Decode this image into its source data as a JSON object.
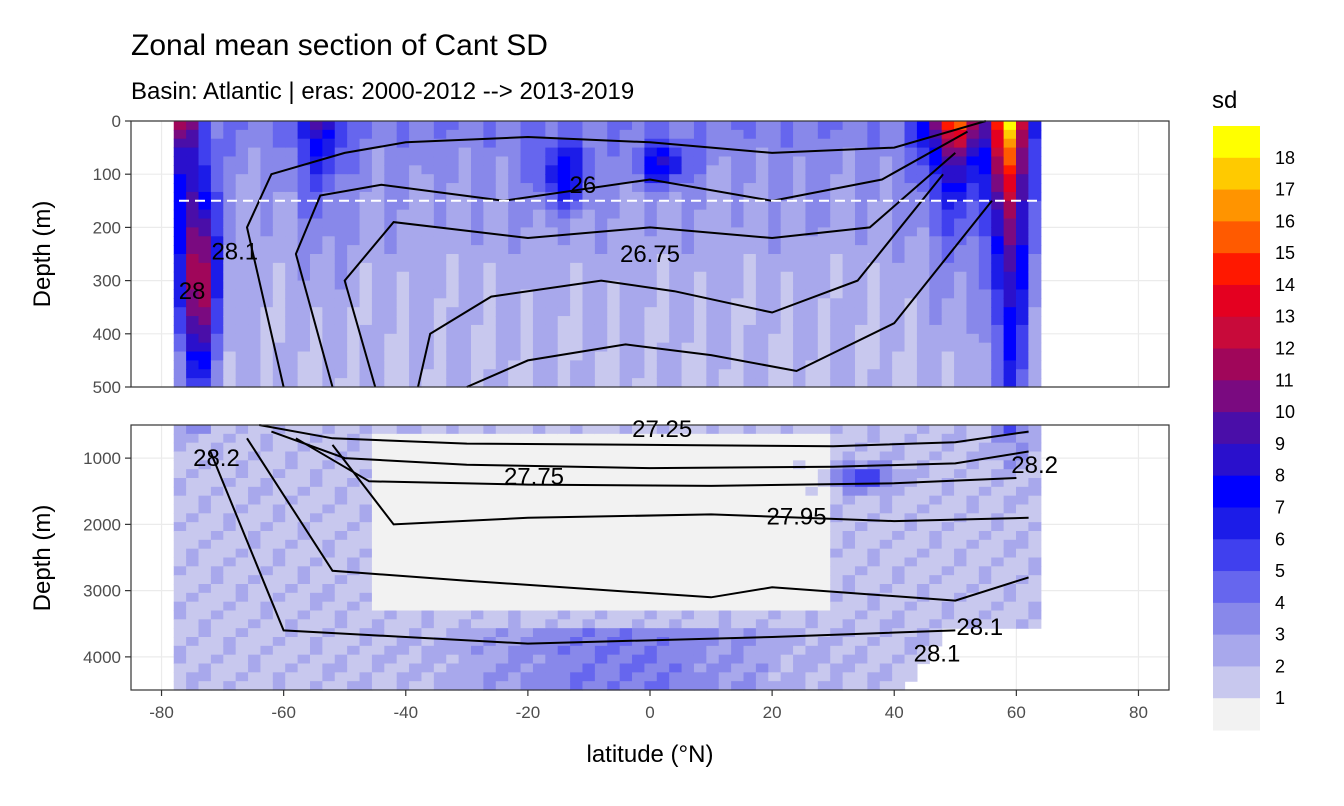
{
  "chart_data": {
    "type": "heatmap",
    "title": "Zonal mean section of Cant SD",
    "subtitle": "Basin: Atlantic | eras: 2000-2012 --> 2013-2019",
    "xlabel": "latitude (°N)",
    "ylabel": "Depth (m)",
    "xlim": [
      -85,
      85
    ],
    "x_ticks": [
      -80,
      -60,
      -40,
      -20,
      0,
      20,
      40,
      60,
      80
    ],
    "x_tick_labels": [
      "-80",
      "-60",
      "-40",
      "-20",
      "0",
      "20",
      "40",
      "60",
      "80"
    ],
    "grid": true,
    "legend_position": "right",
    "panels": [
      {
        "name": "upper",
        "ylim": [
          500,
          0
        ],
        "y_ticks": [
          0,
          100,
          200,
          300,
          400,
          500
        ],
        "y_tick_labels": [
          "0",
          "100",
          "200",
          "300",
          "400",
          "500"
        ],
        "reference_line_depth": 150
      },
      {
        "name": "lower",
        "ylim": [
          4500,
          500
        ],
        "y_ticks": [
          1000,
          2000,
          3000,
          4000
        ],
        "y_tick_labels": [
          "1000",
          "2000",
          "3000",
          "4000"
        ]
      }
    ],
    "legend": {
      "title": "sd",
      "levels": [
        1,
        2,
        3,
        4,
        5,
        6,
        7,
        8,
        9,
        10,
        11,
        12,
        13,
        14,
        15,
        16,
        17,
        18
      ],
      "labels": [
        "1",
        "2",
        "3",
        "4",
        "5",
        "6",
        "7",
        "8",
        "9",
        "10",
        "11",
        "12",
        "13",
        "14",
        "15",
        "16",
        "17",
        "18"
      ],
      "colors": [
        "#f2f2f2",
        "#c8c8ee",
        "#a8a8ec",
        "#8888ea",
        "#6666ee",
        "#4040ee",
        "#1c1ce8",
        "#0000ff",
        "#2a10cc",
        "#4a0ea8",
        "#7a0a80",
        "#a0065a",
        "#c80a3a",
        "#e40020",
        "#ff1800",
        "#ff5a00",
        "#ff9400",
        "#ffca00",
        "#ffff00"
      ]
    },
    "isopycnal_labels": [
      {
        "text": "26",
        "lat": -11,
        "depth": 120
      },
      {
        "text": "26.75",
        "lat": 0,
        "depth": 250
      },
      {
        "text": "28.1",
        "lat": -68,
        "depth": 245
      },
      {
        "text": "28",
        "lat": -75,
        "depth": 320
      },
      {
        "text": "27.25",
        "lat": 2,
        "depth": 510
      },
      {
        "text": "27.25",
        "lat": 2,
        "depth": 560
      },
      {
        "text": "28.2",
        "lat": -71,
        "depth": 1000
      },
      {
        "text": "27.75",
        "lat": -19,
        "depth": 1280
      },
      {
        "text": "27.95",
        "lat": 24,
        "depth": 1880
      },
      {
        "text": "28.1",
        "lat": 47,
        "depth": 3950
      },
      {
        "text": "28.1",
        "lat": 54,
        "depth": 3550
      },
      {
        "text": "28.2",
        "lat": 63,
        "depth": 1100
      }
    ]
  }
}
